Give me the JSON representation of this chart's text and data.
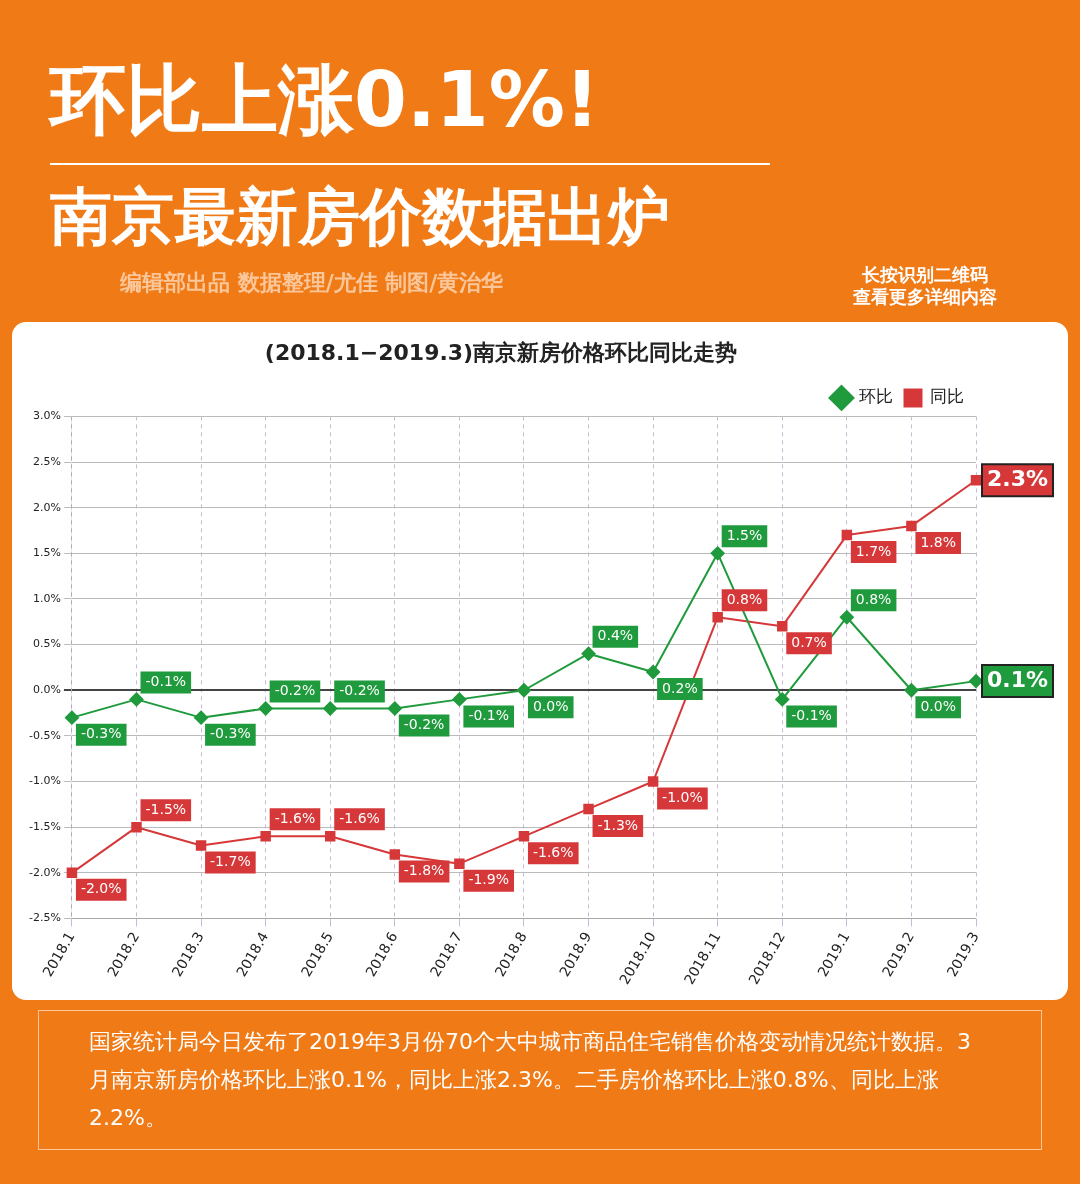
{
  "chart_data": {
    "type": "line",
    "title": "(2018.1−2019.3)南京新房价格环比同比走势",
    "categories": [
      "2018.1",
      "2018.2",
      "2018.3",
      "2018.4",
      "2018.5",
      "2018.6",
      "2018.7",
      "2018.8",
      "2018.9",
      "2018.10",
      "2018.11",
      "2018.12",
      "2019.1",
      "2019.2",
      "2019.3"
    ],
    "series": [
      {
        "name": "环比",
        "color": "#1f9a3c",
        "marker": "diamond",
        "values": [
          -0.3,
          -0.1,
          -0.3,
          -0.2,
          -0.2,
          -0.2,
          -0.1,
          0.0,
          0.4,
          0.2,
          1.5,
          -0.1,
          0.8,
          0.0,
          0.1
        ],
        "value_labels": [
          "-0.3%",
          "-0.1%",
          "-0.3%",
          "-0.2%",
          "-0.2%",
          "-0.2%",
          "-0.1%",
          "0.0%",
          "0.4%",
          "0.2%",
          "1.5%",
          "-0.1%",
          "0.8%",
          "0.0%",
          "0.1%"
        ]
      },
      {
        "name": "同比",
        "color": "#d6383a",
        "marker": "square",
        "values": [
          -2.0,
          -1.5,
          -1.7,
          -1.6,
          -1.6,
          -1.8,
          -1.9,
          -1.6,
          -1.3,
          -1.0,
          0.8,
          0.7,
          1.7,
          1.8,
          2.3
        ],
        "value_labels": [
          "-2.0%",
          "-1.5%",
          "-1.7%",
          "-1.6%",
          "-1.6%",
          "-1.8%",
          "-1.9%",
          "-1.6%",
          "-1.3%",
          "-1.0%",
          "0.8%",
          "0.7%",
          "1.7%",
          "1.8%",
          "2.3%"
        ]
      }
    ],
    "ylim": [
      -2.5,
      3.0
    ],
    "yticks": [
      {
        "value": -2.5,
        "label": "-2.5%"
      },
      {
        "value": -2.0,
        "label": "-2.0%"
      },
      {
        "value": -1.5,
        "label": "-1.5%"
      },
      {
        "value": -1.0,
        "label": "-1.0%"
      },
      {
        "value": -0.5,
        "label": "-0.5%"
      },
      {
        "value": 0,
        "label": "0.0%"
      },
      {
        "value": 0.5,
        "label": "0.5%"
      },
      {
        "value": 1.0,
        "label": "1.0%"
      },
      {
        "value": 1.5,
        "label": "1.5%"
      },
      {
        "value": 2.0,
        "label": "2.0%"
      },
      {
        "value": 2.5,
        "label": "2.5%"
      },
      {
        "value": 3.0,
        "label": "3.0%"
      }
    ],
    "grid": true,
    "legend": "top right",
    "line_style": "solid",
    "annotations": [
      "环比上涨0.1%!",
      "南京最新房价数据出炉",
      "编辑部出品  数据整理/尤佳  制图/黄治华",
      "长按识别二维码",
      "查看更多详细内容",
      "国家统计局今日发布了2019年3月份70个大中城市商品住宅销售价格变动情况统计数据。3月南京新房价格环比上涨0.1%，同比上涨2.3%。二手房价格环比上涨0.8%、同比上涨2.2%。"
    ]
  }
}
